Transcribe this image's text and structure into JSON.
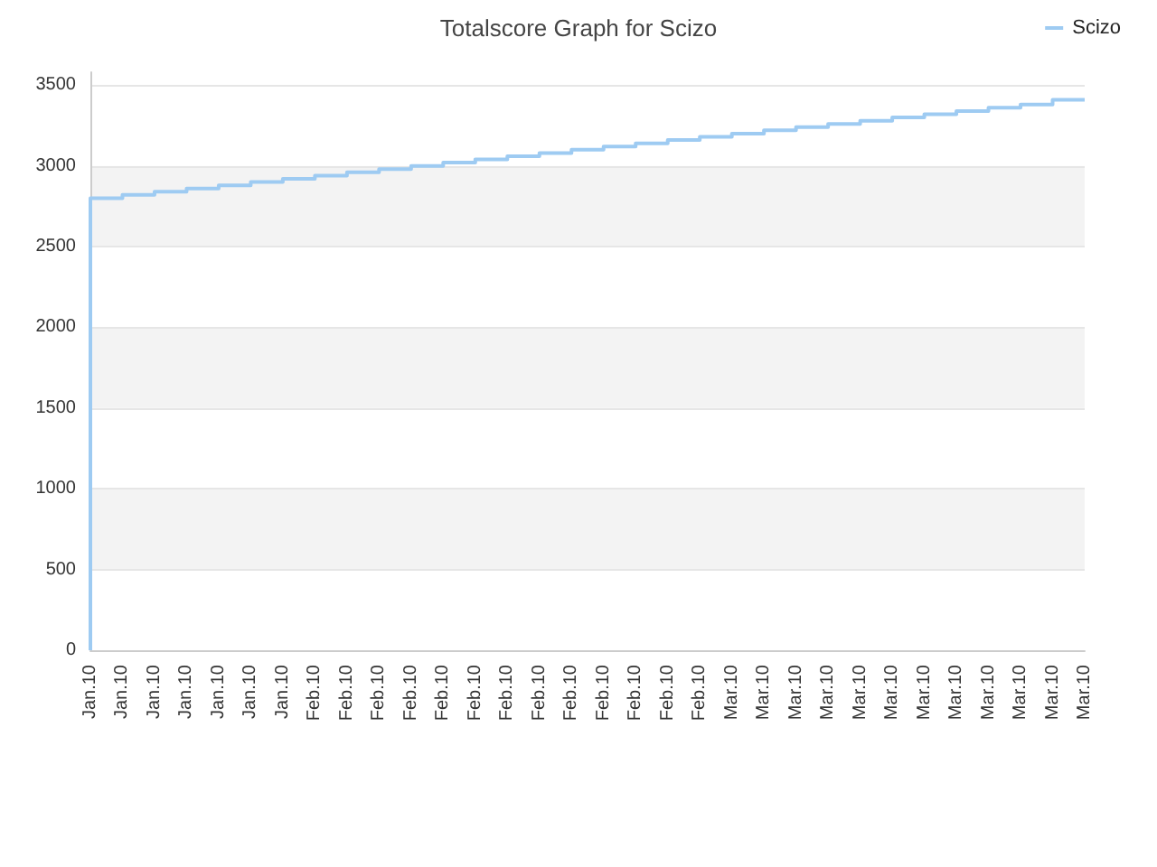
{
  "chart_data": {
    "type": "step",
    "title": "Totalscore Graph for Scizo",
    "categories": [
      "Jan.10",
      "Jan.10",
      "Jan.10",
      "Jan.10",
      "Jan.10",
      "Jan.10",
      "Jan.10",
      "Feb.10",
      "Feb.10",
      "Feb.10",
      "Feb.10",
      "Feb.10",
      "Feb.10",
      "Feb.10",
      "Feb.10",
      "Feb.10",
      "Feb.10",
      "Feb.10",
      "Feb.10",
      "Feb.10",
      "Mar.10",
      "Mar.10",
      "Mar.10",
      "Mar.10",
      "Mar.10",
      "Mar.10",
      "Mar.10",
      "Mar.10",
      "Mar.10",
      "Mar.10",
      "Mar.10",
      "Mar.10"
    ],
    "series": [
      {
        "name": "Scizo",
        "color": "#9ecbf2",
        "values": [
          0,
          2800,
          2820,
          2840,
          2860,
          2880,
          2900,
          2920,
          2940,
          2960,
          2980,
          3000,
          3020,
          3040,
          3060,
          3080,
          3100,
          3120,
          3140,
          3160,
          3180,
          3200,
          3220,
          3240,
          3260,
          3280,
          3300,
          3320,
          3340,
          3360,
          3380,
          3410
        ]
      }
    ],
    "ylim": [
      0,
      3580
    ],
    "yticks": [
      0,
      500,
      1000,
      1500,
      2000,
      2500,
      3000,
      3500
    ],
    "grid": "y",
    "legend": "top right",
    "marker": "none"
  }
}
